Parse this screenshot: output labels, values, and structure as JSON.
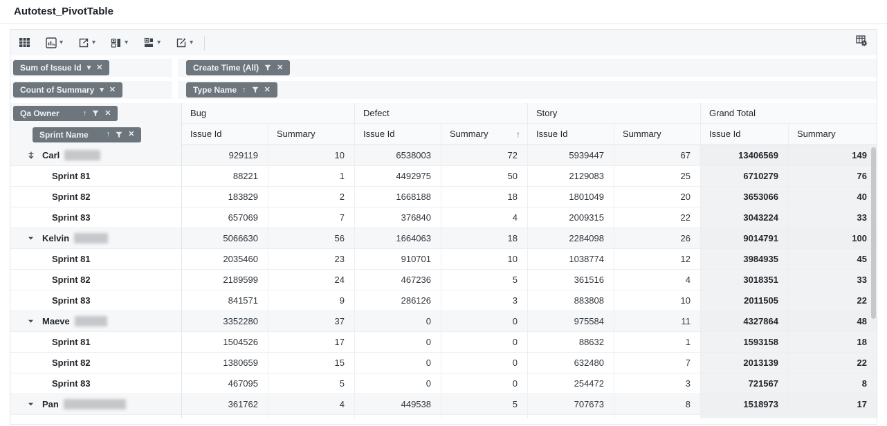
{
  "title": "Autotest_PivotTable",
  "toolbar": {
    "buttons": [
      {
        "id": "grid-view",
        "icon": "table-grid-icon",
        "dropdown": false
      },
      {
        "id": "chart-view",
        "icon": "bar-chart-icon",
        "dropdown": true
      },
      {
        "id": "export",
        "icon": "export-icon",
        "dropdown": true
      },
      {
        "id": "column-fields",
        "icon": "add-column-field-icon",
        "dropdown": true
      },
      {
        "id": "row-fields",
        "icon": "add-row-field-icon",
        "dropdown": true
      },
      {
        "id": "edit",
        "icon": "edit-icon",
        "dropdown": true
      }
    ],
    "right_button": {
      "id": "field-settings",
      "icon": "table-settings-gear-icon"
    }
  },
  "filters": {
    "values": [
      {
        "label": "Sum of Issue Id",
        "icons": [
          "caret-down-icon",
          "close-icon"
        ]
      },
      {
        "label": "Count of Summary",
        "icons": [
          "caret-down-icon",
          "close-icon"
        ]
      }
    ],
    "columns": [
      {
        "label": "Create Time (All)",
        "icons": [
          "filter-icon",
          "close-icon"
        ]
      },
      {
        "label": "Type Name",
        "icons": [
          "sort-asc-icon",
          "filter-icon",
          "close-icon"
        ]
      }
    ],
    "rows": [
      {
        "label": "Qa Owner",
        "icons": [
          "sort-asc-icon",
          "filter-icon",
          "close-icon"
        ]
      },
      {
        "label": "Sprint Name",
        "icons": [
          "sort-asc-icon",
          "filter-icon",
          "close-icon"
        ]
      }
    ]
  },
  "table": {
    "column_groups": [
      {
        "label": "Bug"
      },
      {
        "label": "Defect"
      },
      {
        "label": "Story"
      },
      {
        "label": "Grand Total",
        "total": true
      }
    ],
    "sub_columns": [
      {
        "label": "Issue Id"
      },
      {
        "label": "Summary"
      },
      {
        "label": "Issue Id"
      },
      {
        "label": "Summary",
        "sort": "asc"
      },
      {
        "label": "Issue Id"
      },
      {
        "label": "Summary"
      },
      {
        "label": "Issue Id",
        "total": true
      },
      {
        "label": "Summary",
        "total": true
      }
    ],
    "sort_asc_glyph": "↑",
    "rows": [
      {
        "type": "group",
        "label": "Carl",
        "redacted": true,
        "redaction_width": 52,
        "toggle": "arrow-down-bar",
        "values": [
          "929119",
          "10",
          "6538003",
          "72",
          "5939447",
          "67",
          "13406569",
          "149"
        ]
      },
      {
        "type": "child",
        "label": "Sprint 81",
        "values": [
          "88221",
          "1",
          "4492975",
          "50",
          "2129083",
          "25",
          "6710279",
          "76"
        ]
      },
      {
        "type": "child",
        "label": "Sprint 82",
        "values": [
          "183829",
          "2",
          "1668188",
          "18",
          "1801049",
          "20",
          "3653066",
          "40"
        ]
      },
      {
        "type": "child",
        "label": "Sprint 83",
        "values": [
          "657069",
          "7",
          "376840",
          "4",
          "2009315",
          "22",
          "3043224",
          "33"
        ]
      },
      {
        "type": "group",
        "label": "Kelvin",
        "redacted": true,
        "redaction_width": 49,
        "toggle": "caret-down",
        "values": [
          "5066630",
          "56",
          "1664063",
          "18",
          "2284098",
          "26",
          "9014791",
          "100"
        ]
      },
      {
        "type": "child",
        "label": "Sprint 81",
        "values": [
          "2035460",
          "23",
          "910701",
          "10",
          "1038774",
          "12",
          "3984935",
          "45"
        ]
      },
      {
        "type": "child",
        "label": "Sprint 82",
        "values": [
          "2189599",
          "24",
          "467236",
          "5",
          "361516",
          "4",
          "3018351",
          "33"
        ]
      },
      {
        "type": "child",
        "label": "Sprint 83",
        "values": [
          "841571",
          "9",
          "286126",
          "3",
          "883808",
          "10",
          "2011505",
          "22"
        ]
      },
      {
        "type": "group",
        "label": "Maeve",
        "redacted": true,
        "redaction_width": 47,
        "toggle": "caret-down",
        "values": [
          "3352280",
          "37",
          "0",
          "0",
          "975584",
          "11",
          "4327864",
          "48"
        ]
      },
      {
        "type": "child",
        "label": "Sprint 81",
        "values": [
          "1504526",
          "17",
          "0",
          "0",
          "88632",
          "1",
          "1593158",
          "18"
        ]
      },
      {
        "type": "child",
        "label": "Sprint 82",
        "values": [
          "1380659",
          "15",
          "0",
          "0",
          "632480",
          "7",
          "2013139",
          "22"
        ]
      },
      {
        "type": "child",
        "label": "Sprint 83",
        "values": [
          "467095",
          "5",
          "0",
          "0",
          "254472",
          "3",
          "721567",
          "8"
        ]
      },
      {
        "type": "group",
        "label": "Pan",
        "redacted": true,
        "redaction_width": 90,
        "toggle": "caret-down",
        "values": [
          "361762",
          "4",
          "449538",
          "5",
          "707673",
          "8",
          "1518973",
          "17"
        ]
      }
    ]
  }
}
